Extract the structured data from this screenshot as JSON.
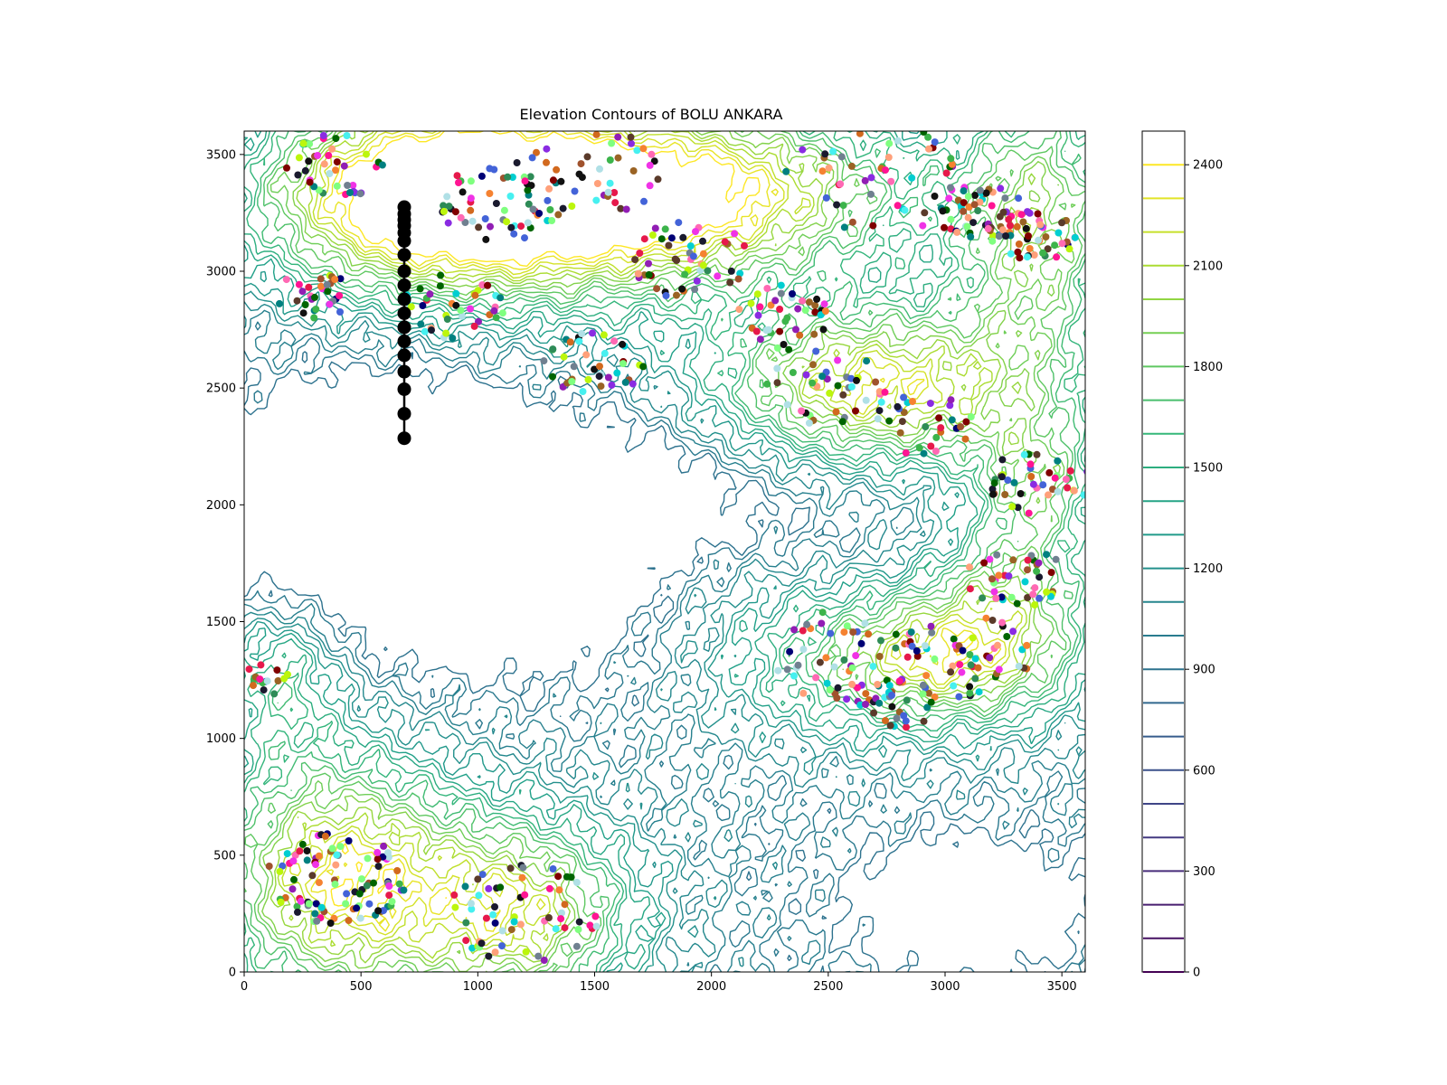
{
  "chart_data": {
    "type": "contour",
    "title": "Elevation Contours of BOLU ANKARA",
    "xlabel": "",
    "ylabel": "",
    "xlim": [
      0,
      3600
    ],
    "ylim": [
      0,
      3600
    ],
    "x_ticks": [
      0,
      500,
      1000,
      1500,
      2000,
      2500,
      3000,
      3500
    ],
    "y_ticks": [
      0,
      500,
      1000,
      1500,
      2000,
      2500,
      3000,
      3500
    ],
    "colorbar": {
      "min": 0,
      "max": 2500,
      "ticks": [
        0,
        300,
        600,
        900,
        1200,
        1500,
        1800,
        2100,
        2400
      ],
      "contour_levels": [
        0,
        100,
        200,
        300,
        400,
        500,
        600,
        700,
        800,
        900,
        1000,
        1100,
        1200,
        1300,
        1400,
        1500,
        1600,
        1700,
        1800,
        1900,
        2000,
        2100,
        2200,
        2300,
        2400
      ],
      "colormap": "viridis"
    },
    "path_series": {
      "color": "#000000",
      "points": [
        {
          "x": 685,
          "y": 2285
        },
        {
          "x": 685,
          "y": 2390
        },
        {
          "x": 685,
          "y": 2495
        },
        {
          "x": 685,
          "y": 2570
        },
        {
          "x": 685,
          "y": 2640
        },
        {
          "x": 685,
          "y": 2700
        },
        {
          "x": 685,
          "y": 2760
        },
        {
          "x": 685,
          "y": 2820
        },
        {
          "x": 685,
          "y": 2880
        },
        {
          "x": 685,
          "y": 2940
        },
        {
          "x": 685,
          "y": 3000
        },
        {
          "x": 685,
          "y": 3070
        },
        {
          "x": 685,
          "y": 3130
        },
        {
          "x": 685,
          "y": 3165
        },
        {
          "x": 685,
          "y": 3195
        },
        {
          "x": 685,
          "y": 3220
        },
        {
          "x": 685,
          "y": 3245
        },
        {
          "x": 685,
          "y": 3275
        }
      ]
    },
    "scatter_clusters": [
      {
        "cx": 3150,
        "cy": 3250,
        "r": 180,
        "n": 60
      },
      {
        "cx": 3400,
        "cy": 3150,
        "r": 160,
        "n": 40
      },
      {
        "cx": 2500,
        "cy": 2500,
        "r": 250,
        "n": 40
      },
      {
        "cx": 2900,
        "cy": 2350,
        "r": 200,
        "n": 30
      },
      {
        "cx": 1500,
        "cy": 2600,
        "r": 200,
        "n": 40
      },
      {
        "cx": 1900,
        "cy": 3050,
        "r": 250,
        "n": 50
      },
      {
        "cx": 2300,
        "cy": 2800,
        "r": 200,
        "n": 40
      },
      {
        "cx": 1100,
        "cy": 3300,
        "r": 250,
        "n": 60
      },
      {
        "cx": 1500,
        "cy": 3450,
        "r": 300,
        "n": 50
      },
      {
        "cx": 2700,
        "cy": 3400,
        "r": 350,
        "n": 50
      },
      {
        "cx": 400,
        "cy": 3450,
        "r": 200,
        "n": 40
      },
      {
        "cx": 300,
        "cy": 2900,
        "r": 150,
        "n": 30
      },
      {
        "cx": 900,
        "cy": 2850,
        "r": 200,
        "n": 40
      },
      {
        "cx": 3400,
        "cy": 2100,
        "r": 200,
        "n": 40
      },
      {
        "cx": 3300,
        "cy": 1700,
        "r": 200,
        "n": 40
      },
      {
        "cx": 2600,
        "cy": 1350,
        "r": 300,
        "n": 60
      },
      {
        "cx": 3100,
        "cy": 1350,
        "r": 250,
        "n": 50
      },
      {
        "cx": 2800,
        "cy": 1150,
        "r": 150,
        "n": 30
      },
      {
        "cx": 400,
        "cy": 400,
        "r": 280,
        "n": 90
      },
      {
        "cx": 1200,
        "cy": 250,
        "r": 300,
        "n": 60
      },
      {
        "cx": 100,
        "cy": 1250,
        "r": 100,
        "n": 15
      }
    ]
  }
}
